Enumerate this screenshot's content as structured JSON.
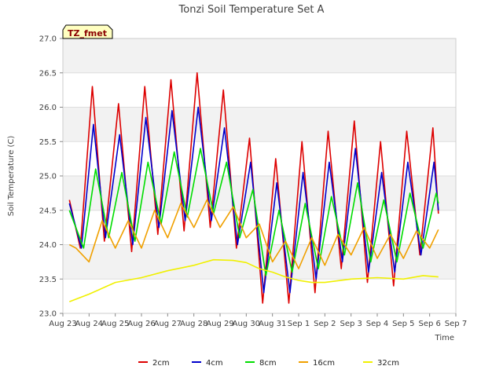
{
  "chart_data": {
    "type": "line",
    "title": "Tonzi Soil Temperature Set A",
    "xlabel": "Time",
    "ylabel": "Soil Temperature (C)",
    "annotation": "TZ_fmet",
    "ylim": [
      23.0,
      27.0
    ],
    "xlim": [
      "2023-08-23",
      "2023-09-07"
    ],
    "yticks": [
      "23.0",
      "23.5",
      "24.0",
      "24.5",
      "25.0",
      "25.5",
      "26.0",
      "26.5",
      "27.0"
    ],
    "xticks": [
      "Aug 23",
      "Aug 24",
      "Aug 25",
      "Aug 26",
      "Aug 27",
      "Aug 28",
      "Aug 29",
      "Aug 30",
      "Aug 31",
      "Sep 1",
      "Sep 2",
      "Sep 3",
      "Sep 4",
      "Sep 5",
      "Sep 6",
      "Sep 7"
    ],
    "grid": true,
    "legend_position": "bottom",
    "series": [
      {
        "name": "2cm",
        "color": "#dd0000",
        "x": [
          "2023-08-23 06:00",
          "2023-08-23 16:00",
          "2023-08-24 03:00",
          "2023-08-24 14:00",
          "2023-08-25 03:00",
          "2023-08-25 15:00",
          "2023-08-26 03:00",
          "2023-08-26 15:00",
          "2023-08-27 03:00",
          "2023-08-27 15:00",
          "2023-08-28 03:00",
          "2023-08-28 15:00",
          "2023-08-29 03:00",
          "2023-08-29 15:00",
          "2023-08-30 03:00",
          "2023-08-30 15:00",
          "2023-08-31 03:00",
          "2023-08-31 15:00",
          "2023-09-01 03:00",
          "2023-09-01 15:00",
          "2023-09-02 03:00",
          "2023-09-02 15:00",
          "2023-09-03 03:00",
          "2023-09-03 15:00",
          "2023-09-04 03:00",
          "2023-09-04 15:00",
          "2023-09-05 03:00",
          "2023-09-05 15:00",
          "2023-09-06 03:00",
          "2023-09-06 08:00"
        ],
        "values": [
          24.65,
          23.95,
          26.3,
          24.05,
          26.05,
          23.9,
          26.3,
          24.15,
          26.4,
          24.2,
          26.5,
          24.25,
          26.25,
          23.95,
          25.55,
          23.15,
          25.25,
          23.15,
          25.5,
          23.3,
          25.65,
          23.65,
          25.8,
          23.45,
          25.5,
          23.4,
          25.65,
          23.85,
          25.7,
          24.45
        ]
      },
      {
        "name": "4cm",
        "color": "#0000cc",
        "x": [
          "2023-08-23 06:00",
          "2023-08-23 17:00",
          "2023-08-24 04:00",
          "2023-08-24 15:00",
          "2023-08-25 04:00",
          "2023-08-25 16:00",
          "2023-08-26 04:00",
          "2023-08-26 16:00",
          "2023-08-27 04:00",
          "2023-08-27 16:00",
          "2023-08-28 04:00",
          "2023-08-28 16:00",
          "2023-08-29 04:00",
          "2023-08-29 16:00",
          "2023-08-30 04:00",
          "2023-08-30 16:00",
          "2023-08-31 04:00",
          "2023-08-31 16:00",
          "2023-09-01 04:00",
          "2023-09-01 16:00",
          "2023-09-02 04:00",
          "2023-09-02 16:00",
          "2023-09-03 04:00",
          "2023-09-03 16:00",
          "2023-09-04 04:00",
          "2023-09-04 16:00",
          "2023-09-05 04:00",
          "2023-09-05 16:00",
          "2023-09-06 04:00",
          "2023-09-06 08:00"
        ],
        "values": [
          24.6,
          23.95,
          25.75,
          24.1,
          25.6,
          24.0,
          25.85,
          24.25,
          25.95,
          24.35,
          26.0,
          24.35,
          25.7,
          24.0,
          25.2,
          23.3,
          24.9,
          23.3,
          25.05,
          23.5,
          25.2,
          23.75,
          25.4,
          23.6,
          25.05,
          23.6,
          25.2,
          23.85,
          25.2,
          24.5
        ]
      },
      {
        "name": "8cm",
        "color": "#00dd00",
        "x": [
          "2023-08-23 06:00",
          "2023-08-23 19:00",
          "2023-08-24 06:00",
          "2023-08-24 18:00",
          "2023-08-25 06:00",
          "2023-08-25 18:00",
          "2023-08-26 06:00",
          "2023-08-26 18:00",
          "2023-08-27 06:00",
          "2023-08-27 18:00",
          "2023-08-28 06:00",
          "2023-08-28 18:00",
          "2023-08-29 06:00",
          "2023-08-29 18:00",
          "2023-08-30 06:00",
          "2023-08-30 18:00",
          "2023-08-31 06:00",
          "2023-08-31 18:00",
          "2023-09-01 06:00",
          "2023-09-01 18:00",
          "2023-09-02 06:00",
          "2023-09-02 18:00",
          "2023-09-03 06:00",
          "2023-09-03 18:00",
          "2023-09-04 06:00",
          "2023-09-04 18:00",
          "2023-09-05 06:00",
          "2023-09-05 18:00",
          "2023-09-06 06:00",
          "2023-09-06 08:00"
        ],
        "values": [
          24.5,
          23.95,
          25.1,
          24.1,
          25.05,
          24.05,
          25.2,
          24.3,
          25.35,
          24.4,
          25.4,
          24.45,
          25.2,
          24.1,
          24.8,
          23.55,
          24.5,
          23.6,
          24.6,
          23.65,
          24.7,
          23.85,
          24.9,
          23.75,
          24.65,
          23.75,
          24.75,
          23.95,
          24.75,
          24.6
        ]
      },
      {
        "name": "16cm",
        "color": "#f0a000",
        "x": [
          "2023-08-23 06:00",
          "2023-08-23 12:00",
          "2023-08-24 00:00",
          "2023-08-24 12:00",
          "2023-08-25 00:00",
          "2023-08-25 12:00",
          "2023-08-26 00:00",
          "2023-08-26 12:00",
          "2023-08-27 00:00",
          "2023-08-27 12:00",
          "2023-08-28 00:00",
          "2023-08-28 12:00",
          "2023-08-29 00:00",
          "2023-08-29 12:00",
          "2023-08-30 00:00",
          "2023-08-30 12:00",
          "2023-08-31 00:00",
          "2023-08-31 12:00",
          "2023-09-01 00:00",
          "2023-09-01 12:00",
          "2023-09-02 00:00",
          "2023-09-02 12:00",
          "2023-09-03 00:00",
          "2023-09-03 12:00",
          "2023-09-04 00:00",
          "2023-09-04 12:00",
          "2023-09-05 00:00",
          "2023-09-05 12:00",
          "2023-09-06 00:00",
          "2023-09-06 08:00"
        ],
        "values": [
          24.0,
          23.95,
          23.75,
          24.35,
          23.95,
          24.35,
          23.95,
          24.5,
          24.1,
          24.6,
          24.25,
          24.65,
          24.25,
          24.55,
          24.1,
          24.3,
          23.75,
          24.05,
          23.65,
          24.1,
          23.7,
          24.15,
          23.85,
          24.25,
          23.8,
          24.15,
          23.8,
          24.2,
          23.95,
          24.22
        ]
      },
      {
        "name": "32cm",
        "color": "#f0f000",
        "x": [
          "2023-08-23 06:00",
          "2023-08-24 00:00",
          "2023-08-25 00:00",
          "2023-08-26 00:00",
          "2023-08-27 00:00",
          "2023-08-28 00:00",
          "2023-08-28 18:00",
          "2023-08-29 12:00",
          "2023-08-30 00:00",
          "2023-08-30 12:00",
          "2023-08-31 00:00",
          "2023-08-31 12:00",
          "2023-09-01 00:00",
          "2023-09-01 12:00",
          "2023-09-02 00:00",
          "2023-09-03 00:00",
          "2023-09-04 00:00",
          "2023-09-05 00:00",
          "2023-09-05 18:00",
          "2023-09-06 08:00"
        ],
        "values": [
          23.17,
          23.28,
          23.45,
          23.52,
          23.62,
          23.7,
          23.78,
          23.77,
          23.74,
          23.65,
          23.6,
          23.53,
          23.48,
          23.45,
          23.45,
          23.5,
          23.52,
          23.5,
          23.55,
          23.53
        ]
      }
    ]
  }
}
